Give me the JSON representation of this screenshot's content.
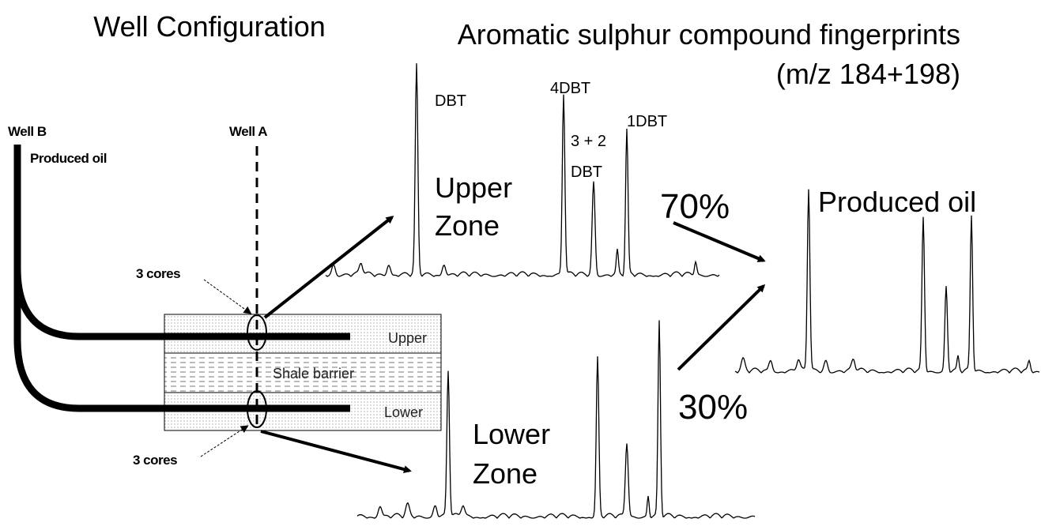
{
  "header": {
    "left_title": "Well Configuration",
    "right_title": "Aromatic sulphur compound fingerprints",
    "right_subtitle": "(m/z 184+198)"
  },
  "well_diagram": {
    "well_b": "Well B",
    "produced_oil": "Produced oil",
    "well_a": "Well A",
    "cores_upper": "3 cores",
    "cores_lower": "3 cores",
    "layers": [
      "Upper",
      "Shale barrier",
      "Lower"
    ]
  },
  "upper_zone": {
    "label_lines": [
      "Upper",
      "Zone"
    ],
    "peaks": [
      "DBT",
      "4DBT",
      "3 + 2",
      "DBT",
      "1DBT"
    ]
  },
  "lower_zone": {
    "label_lines": [
      "Lower",
      "Zone"
    ]
  },
  "produced_oil": {
    "label": "Produced oil",
    "upper_share": "70%",
    "lower_share": "30%"
  }
}
